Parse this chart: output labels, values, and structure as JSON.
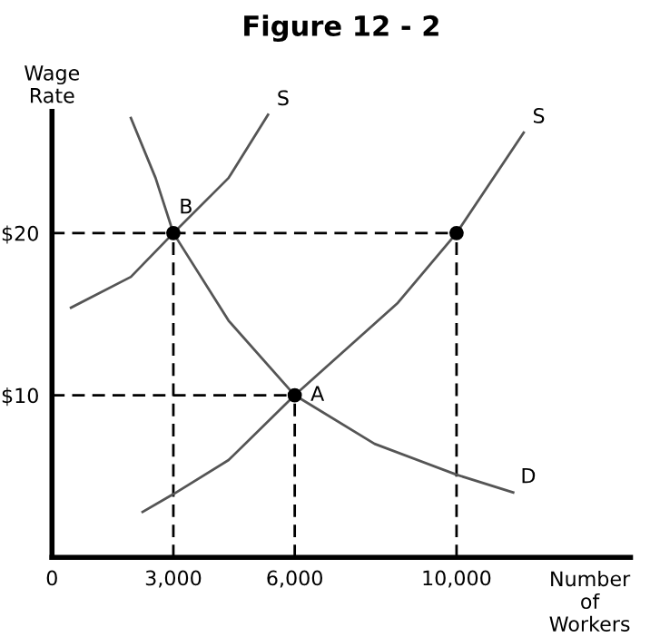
{
  "chart_data": {
    "type": "line",
    "title": "Figure 12 - 2",
    "xlabel": "Number\nof\nWorkers",
    "ylabel": "Wage\nRate",
    "xlim": [
      0,
      14300
    ],
    "ylim": [
      0,
      27.5
    ],
    "xticks": [
      0,
      {
        "value": 3000,
        "label": "3,000"
      },
      {
        "value": 6000,
        "label": "6,000"
      },
      {
        "value": 10000,
        "label": "10,000"
      }
    ],
    "yticks": [
      {
        "value": 10,
        "label": "$10"
      },
      {
        "value": 20,
        "label": "$20"
      }
    ],
    "series": [
      {
        "name": "S",
        "color": "#555555",
        "line_style": "solid",
        "x": [
          470,
          1950,
          3000,
          4364,
          5340
        ],
        "values": [
          15.4,
          17.3,
          20,
          23.4,
          27.3
        ]
      },
      {
        "name": "D",
        "color": "#555555",
        "line_style": "solid",
        "x": [
          1950,
          2560,
          3000,
          4364,
          6000,
          7974,
          10000,
          11400
        ],
        "values": [
          27.1,
          23.4,
          20,
          14.6,
          10,
          7.0,
          5.1,
          4.0
        ]
      },
      {
        "name": "S",
        "color": "#555555",
        "line_style": "solid",
        "x": [
          2240,
          3000,
          4364,
          6000,
          8550,
          10000,
          11660
        ],
        "values": [
          2.8,
          3.9,
          6.0,
          10,
          15.7,
          20,
          26.2
        ]
      },
      {
        "type": "scatter",
        "color": "#000000",
        "marker": "circle",
        "x": [
          3000,
          6000,
          10000
        ],
        "values": [
          20,
          10,
          20
        ]
      }
    ],
    "ref_lines": [
      {
        "axis": "y",
        "value": 20,
        "color": "#000000",
        "line_style": "dashed"
      },
      {
        "axis": "y",
        "value": 10,
        "color": "#000000",
        "line_style": "dashed"
      },
      {
        "axis": "x",
        "value": 3000,
        "color": "#000000",
        "line_style": "dashed"
      },
      {
        "axis": "x",
        "value": 6000,
        "color": "#000000",
        "line_style": "dashed"
      },
      {
        "axis": "x",
        "value": 10000,
        "color": "#000000",
        "line_style": "dashed"
      }
    ],
    "annotations": [
      {
        "text": "B",
        "x": 3000,
        "y": 20
      },
      {
        "text": "A",
        "x": 6000,
        "y": 10
      }
    ]
  }
}
